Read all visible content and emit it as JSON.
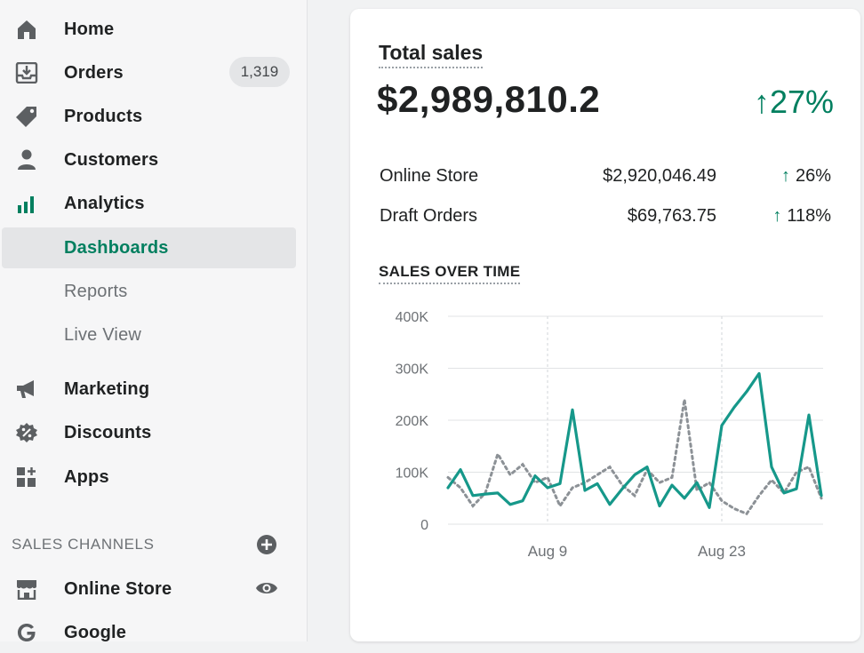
{
  "sidebar": {
    "items": [
      {
        "name": "sidebar-item-home",
        "icon": "home-icon",
        "label": "Home"
      },
      {
        "name": "sidebar-item-orders",
        "icon": "orders-icon",
        "label": "Orders",
        "badge": "1,319"
      },
      {
        "name": "sidebar-item-products",
        "icon": "tag-icon",
        "label": "Products"
      },
      {
        "name": "sidebar-item-customers",
        "icon": "person-icon",
        "label": "Customers"
      },
      {
        "name": "sidebar-item-analytics",
        "icon": "bar-chart-icon",
        "label": "Analytics"
      },
      {
        "name": "sidebar-item-dashboards",
        "label": "Dashboards",
        "active": true
      },
      {
        "name": "sidebar-item-reports",
        "label": "Reports"
      },
      {
        "name": "sidebar-item-live-view",
        "label": "Live View"
      },
      {
        "name": "sidebar-item-marketing",
        "icon": "megaphone-icon",
        "label": "Marketing"
      },
      {
        "name": "sidebar-item-discounts",
        "icon": "discount-icon",
        "label": "Discounts"
      },
      {
        "name": "sidebar-item-apps",
        "icon": "apps-icon",
        "label": "Apps"
      }
    ],
    "sales_channels_title": "SALES CHANNELS",
    "channels": [
      {
        "name": "sidebar-item-online-store",
        "icon": "store-icon",
        "label": "Online Store"
      },
      {
        "name": "sidebar-item-google",
        "icon": "google-icon",
        "label": "Google"
      }
    ]
  },
  "card": {
    "title": "Total sales",
    "total": "$2,989,810.2",
    "total_change": "27%",
    "rows": [
      {
        "label": "Online Store",
        "value": "$2,920,046.49",
        "change": "26%"
      },
      {
        "label": "Draft Orders",
        "value": "$69,763.75",
        "change": "118%"
      }
    ],
    "chart_title": "SALES OVER TIME"
  },
  "colors": {
    "accent": "#007f5f",
    "series_primary": "#16988a",
    "series_compare": "#8c9196"
  },
  "chart_data": {
    "type": "line",
    "ylim": [
      0,
      400000
    ],
    "yticks": [
      0,
      100000,
      200000,
      300000,
      400000
    ],
    "ytick_labels": [
      "0",
      "100K",
      "200K",
      "300K",
      "400K"
    ],
    "x_tick_labels": [
      {
        "index": 8,
        "label": "Aug 9"
      },
      {
        "index": 22,
        "label": "Aug 23"
      }
    ],
    "series": [
      {
        "values": [
          70000,
          105000,
          55000,
          58000,
          60000,
          38000,
          45000,
          93000,
          70000,
          78000,
          220000,
          65000,
          78000,
          38000,
          68000,
          95000,
          110000,
          35000,
          75000,
          50000,
          80000,
          32000,
          190000,
          225000,
          255000,
          290000,
          110000,
          60000,
          68000,
          210000,
          55000
        ]
      },
      {
        "values": [
          90000,
          70000,
          35000,
          60000,
          135000,
          95000,
          115000,
          80000,
          90000,
          35000,
          70000,
          80000,
          95000,
          110000,
          75000,
          55000,
          105000,
          80000,
          90000,
          240000,
          65000,
          80000,
          45000,
          30000,
          20000,
          55000,
          85000,
          60000,
          100000,
          110000,
          50000
        ]
      }
    ]
  }
}
